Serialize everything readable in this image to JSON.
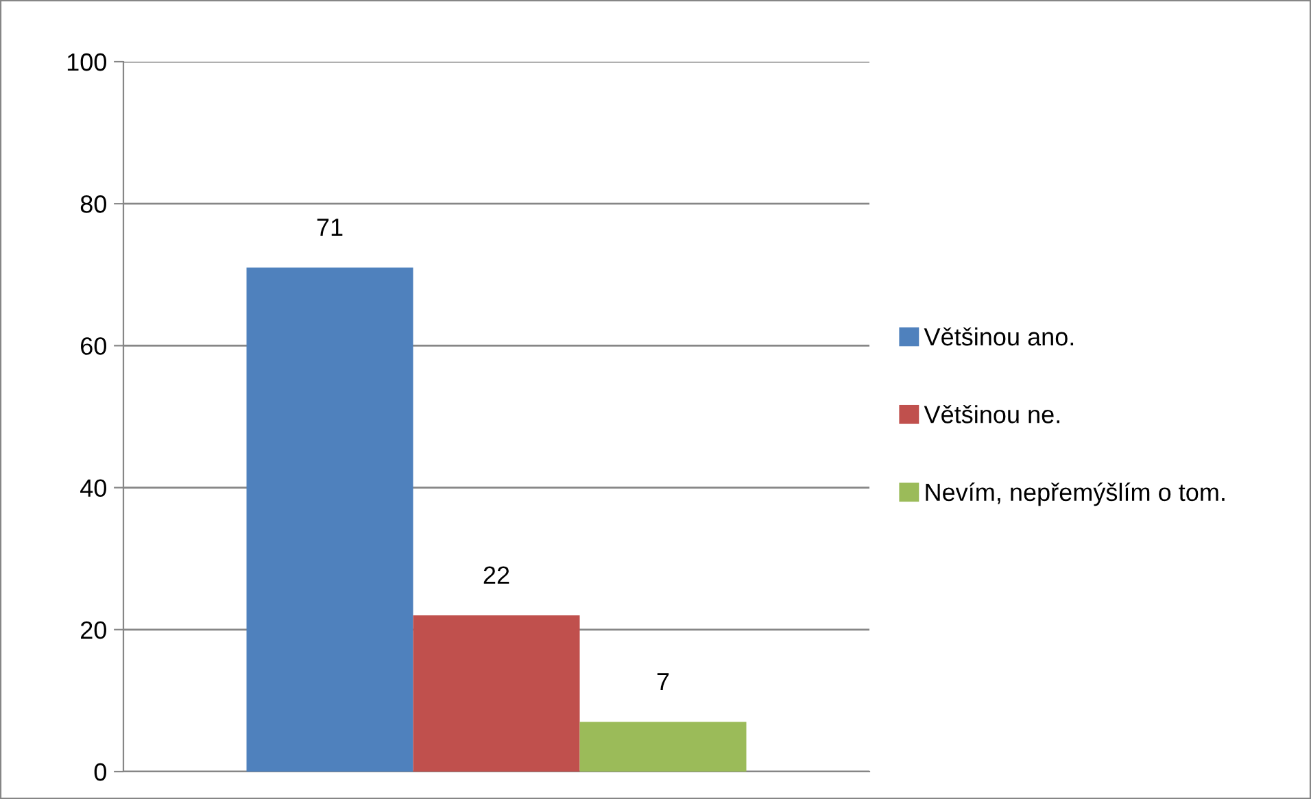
{
  "chart_data": {
    "type": "bar",
    "categories": [
      null
    ],
    "series": [
      {
        "name": "Většinou ano.",
        "color": "#4f81bd",
        "values": [
          71
        ]
      },
      {
        "name": "Většinou ne.",
        "color": "#c0504d",
        "values": [
          22
        ]
      },
      {
        "name": "Nevím, nepřemýšlím o tom.",
        "color": "#9bbb59",
        "values": [
          7
        ]
      }
    ],
    "ylim": [
      0,
      100
    ],
    "yticks": [
      0,
      20,
      40,
      60,
      80,
      100
    ],
    "grid": "y",
    "legend": "right",
    "data_labels": true,
    "tick_labels": "y"
  }
}
